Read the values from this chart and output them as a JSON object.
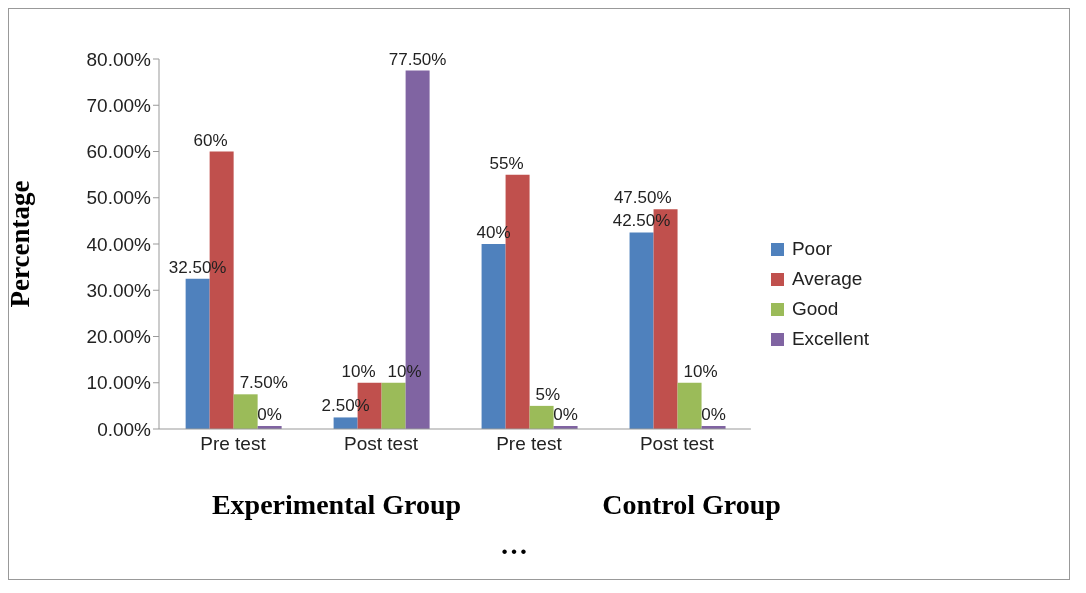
{
  "chart_data": {
    "type": "bar",
    "ylabel": "Percentage",
    "categories": [
      "Pre test",
      "Post test",
      "Pre test",
      "Post test"
    ],
    "series": [
      {
        "name": "Poor",
        "color": "#4f81bd",
        "values": [
          32.5,
          2.5,
          40,
          42.5
        ],
        "value_labels": [
          "32.50%",
          "2.50%",
          "40%",
          "42.50%"
        ]
      },
      {
        "name": "Average",
        "color": "#c0504d",
        "values": [
          60,
          10,
          55,
          47.5
        ],
        "value_labels": [
          "60%",
          "10%",
          "55%",
          "47.50%"
        ]
      },
      {
        "name": "Good",
        "color": "#9bbb59",
        "values": [
          7.5,
          10,
          5,
          10
        ],
        "value_labels": [
          "7.50%",
          "10%",
          "5%",
          "10%"
        ]
      },
      {
        "name": "Excellent",
        "color": "#8064a2",
        "values": [
          0,
          77.5,
          0,
          0
        ],
        "value_labels": [
          "0%",
          "77.50%",
          "0%",
          "0%"
        ]
      }
    ],
    "ylim": [
      0,
      80
    ],
    "yticks": [
      {
        "value": 0,
        "label": "0.00%"
      },
      {
        "value": 10,
        "label": "10.00%"
      },
      {
        "value": 20,
        "label": "20.00%"
      },
      {
        "value": 30,
        "label": "30.00%"
      },
      {
        "value": 40,
        "label": "40.00%"
      },
      {
        "value": 50,
        "label": "50.00%"
      },
      {
        "value": 60,
        "label": "60.00%"
      },
      {
        "value": 70,
        "label": "70.00%"
      },
      {
        "value": 80,
        "label": "80.00%"
      }
    ],
    "grid": false,
    "legend": "right",
    "annotations": [
      "Experimental Group",
      "Control Group",
      "…"
    ]
  }
}
